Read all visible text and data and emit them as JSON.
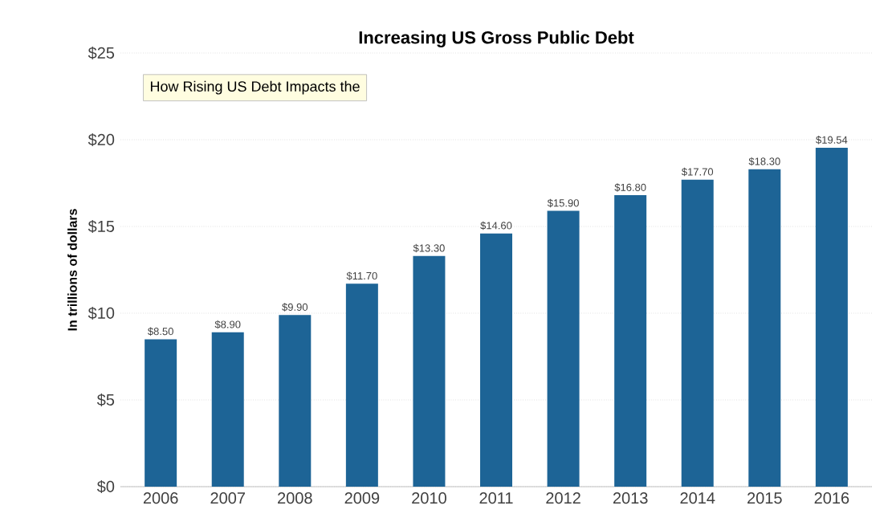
{
  "chart_data": {
    "type": "bar",
    "title": "Increasing US Gross Public Debt",
    "ylabel": "In trillions of dollars",
    "categories": [
      "2006",
      "2007",
      "2008",
      "2009",
      "2010",
      "2011",
      "2012",
      "2013",
      "2014",
      "2015",
      "2016"
    ],
    "values": [
      8.5,
      8.9,
      9.9,
      11.7,
      13.3,
      14.6,
      15.9,
      16.8,
      17.7,
      18.3,
      19.54
    ],
    "value_labels": [
      "$8.50",
      "$8.90",
      "$9.90",
      "$11.70",
      "$13.30",
      "$14.60",
      "$15.90",
      "$16.80",
      "$17.70",
      "$18.30",
      "$19.54"
    ],
    "color": "#1d6496",
    "ylim": [
      0,
      25
    ],
    "yticks": [
      {
        "value": 0,
        "label": "$0"
      },
      {
        "value": 5,
        "label": "$5"
      },
      {
        "value": 10,
        "label": "$10"
      },
      {
        "value": 15,
        "label": "$15"
      },
      {
        "value": 20,
        "label": "$20"
      },
      {
        "value": 25,
        "label": "$25"
      }
    ],
    "grid": "y",
    "annotations": [
      "How Rising US Debt Impacts the"
    ]
  }
}
